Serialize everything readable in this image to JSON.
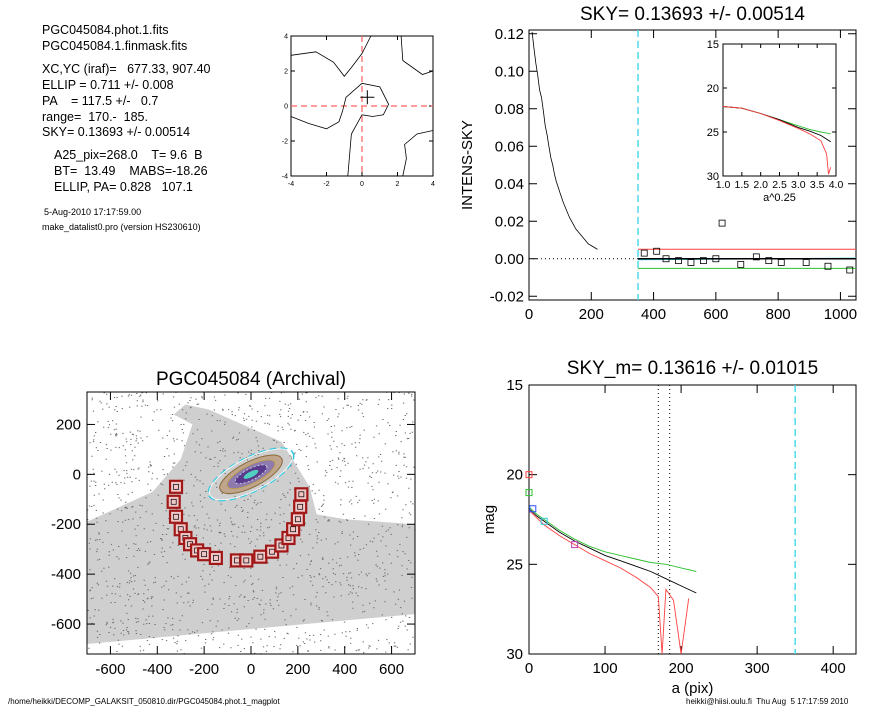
{
  "info": {
    "phot_file": "PGC045084.phot.1.fits",
    "mask_file": "PGC045084.1.finmask.fits",
    "xc_yc": "XC,YC (iraf)=   677.33, 907.40",
    "ellip": "ELLIP = 0.711 +/- 0.008",
    "pa": "PA    = 117.5 +/-   0.7",
    "range": "range=  170.-  185.",
    "sky": "SKY= 0.13693 +/- 0.00514",
    "a25": "A25_pix=268.0    T= 9.6  B",
    "bt": "BT=  13.49    MABS=-18.26",
    "ellip_pa": "ELLIP, PA= 0.828   107.1",
    "date": "5-Aug-2010 17:17:59.00",
    "program": "make_datalist0.pro (version HS230610)"
  },
  "footer": {
    "path": "/home/heikki/DECOMP_GALAKSIT_050810.dir/PGC045084.phot.1_magplot",
    "user": "heikki@hiisi.oulu.fi  Thu Aug  5 17:17:59 2010"
  },
  "chart_data": [
    {
      "id": "contour",
      "type": "line",
      "title": "",
      "xlim": [
        -4,
        4
      ],
      "ylim": [
        -4,
        4
      ],
      "xticks": [
        "-4",
        "-2",
        "0",
        "2",
        "4"
      ],
      "yticks": [
        "-4",
        "-2",
        "0",
        "2",
        "4"
      ],
      "center": [
        0.3,
        0.5
      ],
      "crosshair": [
        0,
        0
      ],
      "colors": {
        "contour": "#000000",
        "crosshair": "#ff6060"
      },
      "contours": [
        [
          [
            -4,
            2.9
          ],
          [
            -2.6,
            3.1
          ],
          [
            -1.6,
            2.5
          ],
          [
            -1.0,
            1.7
          ],
          [
            -0.6,
            2.2
          ],
          [
            0.0,
            3.0
          ],
          [
            0.5,
            4.0
          ]
        ],
        [
          [
            -4,
            -0.6
          ],
          [
            -3.0,
            -1.0
          ],
          [
            -2.0,
            -1.3
          ],
          [
            -1.3,
            -0.9
          ],
          [
            -1.1,
            -0.3
          ],
          [
            -0.9,
            0.5
          ],
          [
            0.0,
            1.3
          ],
          [
            1.0,
            1.1
          ],
          [
            1.5,
            0.1
          ],
          [
            1.2,
            -0.5
          ],
          [
            0.6,
            -0.6
          ],
          [
            0.0,
            -0.5
          ],
          [
            -0.6,
            -1.6
          ],
          [
            -0.8,
            -4.0
          ]
        ],
        [
          [
            2.2,
            4.0
          ],
          [
            2.3,
            2.6
          ],
          [
            3.4,
            1.8
          ],
          [
            4.0,
            2.0
          ]
        ],
        [
          [
            4.0,
            -1.4
          ],
          [
            3.1,
            -1.6
          ],
          [
            2.4,
            -2.2
          ],
          [
            2.5,
            -3.0
          ],
          [
            2.3,
            -4.0
          ]
        ]
      ]
    },
    {
      "id": "sky-profile",
      "type": "line",
      "title": "SKY= 0.13693 +/- 0.00514",
      "ylabel": "INTENS-SKY",
      "xlim": [
        0,
        1050
      ],
      "ylim": [
        -0.022,
        0.122
      ],
      "xticks": [
        0,
        200,
        400,
        600,
        800,
        1000
      ],
      "yticks": [
        -0.02,
        0.0,
        0.02,
        0.04,
        0.06,
        0.08,
        0.1,
        0.12
      ],
      "ytick_labels": [
        "-0.02",
        "0.00",
        "0.02",
        "0.04",
        "0.06",
        "0.08",
        "0.10",
        "0.12"
      ],
      "vline_x": 350,
      "zero_line": 0.0,
      "band": {
        "upper": 0.0051,
        "lower": -0.0051
      },
      "colors": {
        "profile": "#000000",
        "upper": "#ff4040",
        "lower": "#30c030",
        "fit": "#30c8e0",
        "vline": "#40d8e8"
      },
      "series": [
        {
          "x": [
            10,
            16,
            22,
            28,
            34,
            40,
            46,
            52,
            58,
            64,
            70,
            76,
            82,
            88,
            94,
            100,
            110,
            120,
            130,
            140,
            150,
            160,
            170,
            180,
            190,
            200,
            210,
            220
          ],
          "y": [
            0.121,
            0.112,
            0.104,
            0.098,
            0.09,
            0.086,
            0.079,
            0.071,
            0.066,
            0.06,
            0.054,
            0.05,
            0.045,
            0.041,
            0.038,
            0.035,
            0.03,
            0.026,
            0.022,
            0.019,
            0.016,
            0.014,
            0.012,
            0.01,
            0.008,
            0.007,
            0.006,
            0.005
          ]
        }
      ],
      "squares": {
        "x": [
          370,
          410,
          440,
          480,
          520,
          560,
          600,
          620,
          680,
          730,
          770,
          810,
          890,
          960,
          1030
        ],
        "y": [
          0.003,
          0.004,
          0.0,
          -0.001,
          -0.002,
          -0.001,
          0.0,
          0.019,
          -0.003,
          0.001,
          -0.001,
          -0.002,
          -0.002,
          -0.004,
          -0.006
        ]
      },
      "inset": {
        "xlabel": "a^0.25",
        "xlim": [
          1.0,
          4.0
        ],
        "ylim": [
          15,
          30
        ],
        "xticks": [
          "1.0",
          "1.5",
          "2.0",
          "2.5",
          "3.0",
          "3.5",
          "4.0"
        ],
        "yticks": [
          "15",
          "20",
          "25",
          "30"
        ],
        "series": [
          {
            "color": "#30c030",
            "x": [
              1.0,
              1.5,
              2.0,
              2.5,
              3.0,
              3.3,
              3.6,
              3.86
            ],
            "y": [
              22.1,
              22.3,
              22.9,
              23.6,
              24.3,
              24.7,
              25.0,
              25.2
            ]
          },
          {
            "color": "#000000",
            "x": [
              1.0,
              1.5,
              2.0,
              2.5,
              3.0,
              3.3,
              3.6,
              3.86
            ],
            "y": [
              22.1,
              22.3,
              22.9,
              23.6,
              24.5,
              24.9,
              25.4,
              26.1
            ]
          },
          {
            "color": "#ff4040",
            "x": [
              1.0,
              1.5,
              2.0,
              2.5,
              3.0,
              3.3,
              3.6,
              3.75,
              3.8,
              3.86
            ],
            "y": [
              22.1,
              22.3,
              22.9,
              23.7,
              24.6,
              25.2,
              26.0,
              27.5,
              29.8,
              29.0
            ]
          }
        ]
      }
    },
    {
      "id": "archival-image",
      "type": "scatter",
      "title": "PGC045084 (Archival)",
      "xlim": [
        -700,
        700
      ],
      "ylim": [
        -720,
        330
      ],
      "xticks": [
        -600,
        -400,
        -200,
        0,
        200,
        400,
        600
      ],
      "yticks": [
        -600,
        -400,
        -200,
        0,
        200
      ],
      "colors": {
        "field": "#8a8a8a",
        "mask": "#a01818",
        "ellipse": "#30c8e0"
      },
      "mask_boxes": {
        "x": [
          -320,
          -330,
          -320,
          -300,
          -280,
          -260,
          -230,
          -200,
          -150,
          -60,
          -20,
          40,
          90,
          130,
          160,
          180,
          200,
          210,
          215
        ],
        "y": [
          -50,
          -110,
          -170,
          -220,
          -255,
          -280,
          -305,
          -320,
          -335,
          -345,
          -345,
          -330,
          -310,
          -285,
          -255,
          -220,
          -180,
          -130,
          -80
        ]
      },
      "galaxy_center": [
        0,
        0
      ],
      "outer_ellipse_a": 268,
      "ellipse_pa_deg": 27
    },
    {
      "id": "mag-profile",
      "type": "line",
      "title": "SKY_m=  0.13616 +/- 0.01015",
      "xlabel": "a (pix)",
      "ylabel": "mag",
      "xlim": [
        0,
        430
      ],
      "ylim": [
        15,
        30
      ],
      "xticks": [
        0,
        100,
        200,
        300,
        400
      ],
      "yticks": [
        15,
        20,
        25,
        30
      ],
      "range_lines": [
        170,
        185
      ],
      "vline_x": 350,
      "colors": {
        "upper": "#ff4040",
        "lower": "#30c030",
        "main": "#000000",
        "vline": "#40d8e8"
      },
      "series": [
        {
          "color": "#30c030",
          "x": [
            0,
            10,
            20,
            40,
            60,
            80,
            100,
            120,
            140,
            160,
            180,
            200,
            220
          ],
          "y": [
            21.8,
            22.2,
            22.5,
            23.1,
            23.6,
            24.0,
            24.3,
            24.5,
            24.7,
            24.9,
            25.0,
            25.2,
            25.4
          ]
        },
        {
          "color": "#000000",
          "x": [
            0,
            10,
            20,
            40,
            60,
            80,
            100,
            120,
            140,
            160,
            180,
            200,
            220
          ],
          "y": [
            21.9,
            22.3,
            22.6,
            23.2,
            23.7,
            24.1,
            24.5,
            24.8,
            25.1,
            25.4,
            25.8,
            26.2,
            26.6
          ]
        },
        {
          "color": "#ff4040",
          "x": [
            0,
            10,
            20,
            40,
            60,
            80,
            100,
            120,
            140,
            160,
            170,
            175,
            180,
            190,
            200,
            210
          ],
          "y": [
            22.0,
            22.4,
            22.8,
            23.4,
            23.9,
            24.4,
            24.8,
            25.2,
            25.7,
            26.3,
            26.8,
            30.0,
            26.4,
            27.0,
            30.0,
            26.9
          ]
        }
      ]
    }
  ]
}
